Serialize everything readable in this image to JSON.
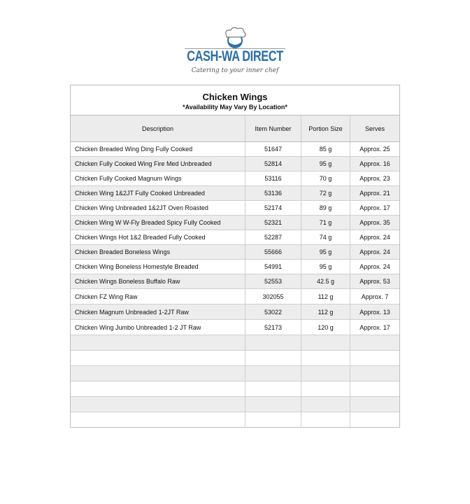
{
  "logo": {
    "brand": "CASH-WA DIRECT",
    "tagline": "Catering to your inner chef",
    "icon": "chef-hat-icon",
    "brand_color": "#2a6fa8"
  },
  "table": {
    "title": "Chicken Wings",
    "subtitle": "*Availability May Vary By Location*",
    "headers": [
      "Description",
      "Item Number",
      "Portion Size",
      "Serves"
    ],
    "rows": [
      [
        "Chicken Breaded Wing Ding Fully Cooked",
        "51647",
        "85 g",
        "Approx. 25"
      ],
      [
        "Chicken Fully Cooked Wing Fire Med Unbreaded",
        "52814",
        "95 g",
        "Approx. 16"
      ],
      [
        "Chicken Fully Cooked Magnum Wings",
        "53116",
        "70 g",
        "Approx. 23"
      ],
      [
        "Chicken Wing 1&2JT Fully Cooked Unbreaded",
        "53136",
        "72 g",
        "Approx. 21"
      ],
      [
        "Chicken Wing Unbreaded 1&2JT Oven Roasted",
        "52174",
        "89 g",
        "Approx. 17"
      ],
      [
        "Chicken Wing W W-Fly Breaded Spicy Fully Cooked",
        "52321",
        "71 g",
        "Approx. 35"
      ],
      [
        "Chicken Wings Hot 1&2 Breaded Fully Cooked",
        "52287",
        "74 g",
        "Approx. 24"
      ],
      [
        "Chicken Breaded Boneless Wings",
        "55666",
        "95 g",
        "Approx. 24"
      ],
      [
        "Chicken Wing Boneless Homestyle Breaded",
        "54991",
        "95 g",
        "Approx. 24"
      ],
      [
        "Chicken Wings Boneless Buffalo Raw",
        "52553",
        "42.5 g",
        "Approx. 53"
      ],
      [
        "Chicken FZ Wing Raw",
        "302055",
        "112 g",
        "Approx. 7"
      ],
      [
        "Chicken Magnum Unbreaded 1-2JT Raw",
        "53022",
        "112 g",
        "Approx. 13"
      ],
      [
        "Chicken Wing Jumbo Unbreaded 1-2 JT Raw",
        "52173",
        "120 g",
        "Approx. 17"
      ]
    ],
    "empty_rows": 6
  }
}
